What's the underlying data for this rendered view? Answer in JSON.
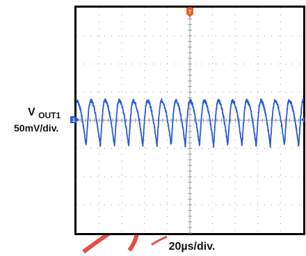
{
  "chart_data": {
    "type": "line",
    "title": "",
    "grid": true,
    "divisions": {
      "x": 10,
      "y": 8
    },
    "xlim": [
      -100,
      100
    ],
    "ylim": [
      -200,
      200
    ],
    "xlabel": "20µs/div.",
    "channel_label": {
      "main": "V",
      "subscript": "OUT1",
      "scale": "50mV/div."
    },
    "channel_marker": "1",
    "trigger_marker": "T",
    "series": [
      {
        "name": "",
        "color": "#2a5bd7",
        "waveform": "ripple",
        "period_us": 12.5,
        "y_peak_mv": 35,
        "y_trough_mv": -45,
        "y_offset_mv": 0
      }
    ]
  },
  "colors": {
    "trace": "#2a5bd7",
    "trigger": "#e8601c",
    "grid": "#9a9a9a",
    "frame": "#000000",
    "watermark": "#e53935"
  }
}
